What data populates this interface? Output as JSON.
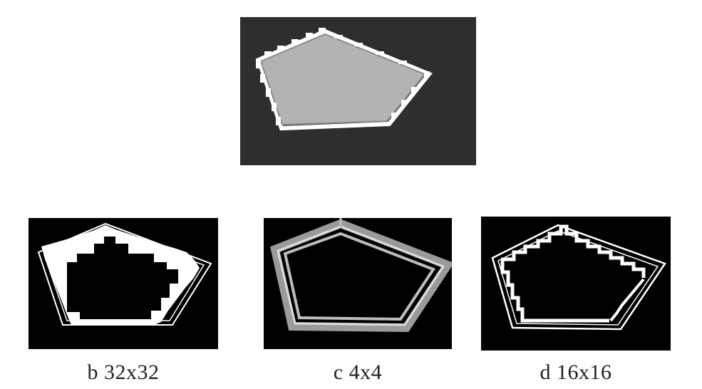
{
  "figure": {
    "panels": [
      {
        "id": "a",
        "caption": ""
      },
      {
        "id": "b",
        "caption": "b 32x32"
      },
      {
        "id": "c",
        "caption": "c 4x4"
      },
      {
        "id": "d",
        "caption": "d 16x16"
      }
    ],
    "colors": {
      "panel_a_background": "#2e2e2e",
      "polygon_fill": "#b3b3b3",
      "edge": "#ffffff",
      "panel_background": "#000000",
      "c_edge": "#9a9a9a"
    }
  }
}
